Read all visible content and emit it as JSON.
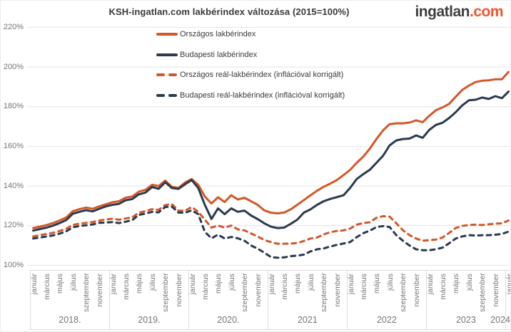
{
  "header": {
    "title": "KSH-ingatlan.com lakbérindex változása (2015=100%)",
    "logo_part1": "ingatlan",
    "logo_part2": ".com"
  },
  "colors": {
    "orange": "#d4572a",
    "navy": "#2b3a4d",
    "logo_accent": "#f1522e",
    "grid": "#e4e4e4",
    "axis_text": "#757575",
    "title_text": "#3a3a3a"
  },
  "chart_data": {
    "type": "line",
    "title": "KSH-ingatlan.com lakbérindex változása (2015=100%)",
    "ylim": [
      100,
      220
    ],
    "y_ticks": [
      "220%",
      "200%",
      "180%",
      "160%",
      "140%",
      "120%",
      "100%"
    ],
    "y_tick_values": [
      220,
      200,
      180,
      160,
      140,
      120,
      100
    ],
    "grid": "horizontal-only",
    "legend_position": "top-left-inside",
    "month_tick_labels": [
      "január",
      "március",
      "május",
      "július",
      "szeptember",
      "november"
    ],
    "years": [
      {
        "label": "2018.",
        "months": 12
      },
      {
        "label": "2019.",
        "months": 12
      },
      {
        "label": "2020.",
        "months": 12
      },
      {
        "label": "2021",
        "months": 12
      },
      {
        "label": "2022",
        "months": 12
      },
      {
        "label": "2023",
        "months": 12
      },
      {
        "label": "2024",
        "months": 1
      }
    ],
    "x_range": "2018. január – 2024. január (havi)",
    "series": [
      {
        "id": "orszagos-lakberindex",
        "name": "Országos lakbérindex",
        "color": "#d4572a",
        "dash": false,
        "values": [
          118.8,
          119.5,
          120.3,
          121.3,
          122.6,
          124.1,
          127.3,
          128.3,
          129.1,
          128.5,
          129.7,
          130.8,
          131.8,
          132.3,
          134.1,
          134.7,
          137.1,
          138.0,
          140.6,
          140.0,
          142.7,
          139.6,
          139.0,
          141.8,
          143.5,
          140.6,
          134.7,
          131.2,
          134.3,
          131.9,
          135.3,
          133.2,
          134.1,
          132.3,
          130.5,
          127.7,
          126.6,
          126.2,
          126.6,
          128.2,
          130.5,
          132.9,
          135.3,
          137.6,
          139.6,
          141.2,
          143.0,
          145.5,
          148.1,
          151.7,
          154.8,
          158.9,
          163.7,
          168.1,
          171.2,
          171.6,
          171.6,
          172.0,
          173.1,
          172.2,
          175.4,
          178.2,
          179.6,
          181.4,
          185.0,
          188.5,
          190.6,
          192.4,
          193.1,
          193.3,
          193.8,
          193.8,
          197.5
        ]
      },
      {
        "id": "budapesti-lakberindex",
        "name": "Budapesti lakbérindex",
        "color": "#2b3a4d",
        "dash": false,
        "values": [
          117.5,
          118.3,
          119.0,
          120.0,
          121.3,
          122.8,
          126.0,
          127.0,
          127.8,
          127.2,
          128.5,
          129.7,
          130.5,
          131.0,
          132.8,
          133.4,
          135.8,
          136.7,
          139.5,
          138.6,
          141.9,
          139.0,
          138.5,
          140.9,
          143.0,
          139.0,
          130.5,
          123.4,
          128.7,
          125.8,
          128.7,
          127.0,
          127.6,
          125.1,
          123.3,
          121.2,
          119.5,
          118.8,
          119.0,
          120.9,
          123.0,
          126.6,
          128.2,
          130.5,
          132.3,
          133.5,
          134.4,
          135.3,
          139.0,
          143.5,
          146.0,
          148.2,
          151.7,
          155.3,
          160.5,
          163.0,
          163.7,
          163.9,
          165.5,
          164.3,
          168.3,
          170.8,
          171.9,
          174.3,
          177.2,
          180.7,
          183.2,
          183.5,
          184.6,
          183.9,
          185.3,
          184.3,
          187.6
        ]
      },
      {
        "id": "orszagos-real-lakberindex",
        "name": "Országos reál-lakbérindex (inflációval korrigált)",
        "color": "#d4572a",
        "dash": true,
        "values": [
          114.6,
          115.2,
          115.8,
          116.4,
          117.3,
          118.4,
          120.4,
          121.0,
          121.4,
          121.8,
          122.6,
          123.1,
          123.5,
          123.0,
          123.6,
          124.2,
          126.5,
          127.3,
          128.3,
          128.0,
          130.4,
          130.9,
          127.6,
          127.5,
          129.4,
          127.0,
          123.0,
          119.0,
          120.1,
          119.0,
          120.1,
          118.1,
          117.6,
          116.1,
          114.5,
          112.8,
          111.7,
          110.9,
          110.9,
          111.0,
          111.2,
          112.3,
          113.5,
          114.0,
          115.6,
          116.7,
          117.3,
          117.6,
          118.5,
          120.5,
          121.3,
          121.7,
          124.0,
          124.8,
          124.5,
          121.2,
          117.7,
          115.2,
          113.5,
          112.4,
          112.7,
          113.0,
          114.0,
          116.3,
          118.8,
          119.9,
          120.3,
          120.5,
          120.3,
          120.7,
          121.0,
          121.2,
          122.6
        ]
      },
      {
        "id": "budapesti-real-lakberindex",
        "name": "Budapesti reál-lakbérindex (inflációval korrigált)",
        "color": "#2b3a4d",
        "dash": true,
        "values": [
          113.5,
          114.0,
          114.5,
          115.1,
          116.0,
          117.1,
          119.2,
          119.8,
          120.2,
          120.6,
          121.4,
          121.6,
          121.8,
          121.3,
          122.0,
          122.8,
          125.4,
          126.1,
          127.0,
          126.7,
          129.4,
          129.6,
          126.6,
          126.5,
          127.7,
          125.8,
          116.9,
          113.6,
          115.5,
          113.5,
          114.3,
          113.6,
          112.4,
          110.0,
          108.4,
          106.4,
          104.2,
          103.8,
          104.0,
          104.6,
          104.9,
          105.4,
          107.0,
          108.1,
          108.5,
          109.5,
          110.3,
          111.0,
          111.7,
          114.2,
          116.2,
          117.5,
          119.3,
          119.8,
          119.3,
          115.2,
          112.4,
          110.0,
          108.1,
          107.6,
          107.6,
          108.1,
          108.9,
          111.1,
          113.5,
          114.6,
          115.2,
          115.0,
          115.2,
          115.2,
          115.4,
          115.8,
          117.0
        ]
      }
    ]
  }
}
